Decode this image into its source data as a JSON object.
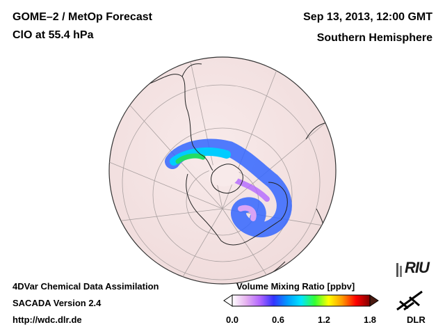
{
  "header": {
    "title": "GOME–2 / MetOp Forecast",
    "subtitle": "ClO at 55.4 hPa",
    "datetime": "Sep 13, 2013, 12:00 GMT",
    "hemisphere": "Southern Hemisphere"
  },
  "footer": {
    "line1": "4DVar Chemical Data Assimilation",
    "line2": "SACADA Version 2.4",
    "url": "http://wdc.dlr.de"
  },
  "colorbar": {
    "title": "Volume Mixing Ratio [ppbv]",
    "ticks": [
      "0.0",
      "0.6",
      "1.2",
      "1.8"
    ],
    "range": [
      0.0,
      1.8
    ],
    "colors": [
      "#ffffff",
      "#e6b3f0",
      "#b366ff",
      "#3333ff",
      "#0099ff",
      "#00e5ff",
      "#33ff33",
      "#ffff00",
      "#ff9900",
      "#ff0000",
      "#800000"
    ]
  },
  "logos": {
    "riu": "RIU",
    "dlr": "DLR"
  },
  "map": {
    "projection": "orthographic",
    "center": "South Pole",
    "background_color": "#f6e5e5"
  }
}
